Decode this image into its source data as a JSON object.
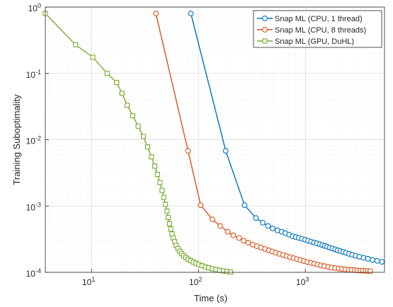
{
  "chart_data": {
    "type": "line",
    "xlabel": "Time (s)",
    "ylabel": "Training Suboptimality",
    "xscale": "log",
    "yscale": "log",
    "xlim": [
      3.7,
      5500
    ],
    "ylim": [
      0.0001,
      1
    ],
    "x_ticks": [
      {
        "value": 10,
        "base": "10",
        "exp": "1"
      },
      {
        "value": 100,
        "base": "10",
        "exp": "2"
      },
      {
        "value": 1000,
        "base": "10",
        "exp": "3"
      }
    ],
    "y_ticks": [
      {
        "value": 0.0001,
        "base": "10",
        "exp": "-4"
      },
      {
        "value": 0.001,
        "base": "10",
        "exp": "-3"
      },
      {
        "value": 0.01,
        "base": "10",
        "exp": "-2"
      },
      {
        "value": 0.1,
        "base": "10",
        "exp": "-1"
      },
      {
        "value": 1,
        "base": "10",
        "exp": "0"
      }
    ],
    "grid": true,
    "legend_position": "top-right",
    "marker_style": {
      "open_markers": true
    },
    "series": [
      {
        "name": "Snap ML (CPU, 1 thread)",
        "color": "#0072BD",
        "marker": "circle",
        "x": [
          85,
          180,
          270,
          345,
          400,
          448,
          495,
          548,
          600,
          650,
          705,
          760,
          815,
          870,
          930,
          995,
          1060,
          1130,
          1205,
          1280,
          1360,
          1440,
          1520,
          1600,
          1690,
          1790,
          1900,
          2010,
          2130,
          2260,
          2400,
          2560,
          2740,
          2950,
          3200,
          3500,
          3850,
          4250,
          4700,
          5200
        ],
        "y": [
          0.8,
          0.0068,
          0.00103,
          0.00066,
          0.00056,
          0.0005,
          0.00046,
          0.00043,
          0.00041,
          0.00039,
          0.00037,
          0.00035,
          0.00034,
          0.00033,
          0.00032,
          0.00031,
          0.0003,
          0.00029,
          0.000282,
          0.000274,
          0.000266,
          0.000258,
          0.00025,
          0.000243,
          0.000236,
          0.000229,
          0.000222,
          0.000215,
          0.000209,
          0.000203,
          0.000197,
          0.00019,
          0.000184,
          0.000178,
          0.000172,
          0.000166,
          0.00016,
          0.000154,
          0.000149,
          0.000144
        ]
      },
      {
        "name": "Snap ML (CPU, 8 threads)",
        "color": "#D95319",
        "marker": "circle",
        "x": [
          40,
          80,
          105,
          135,
          160,
          188,
          212,
          240,
          265,
          292,
          322,
          352,
          385,
          420,
          455,
          490,
          530,
          572,
          618,
          667,
          720,
          775,
          835,
          900,
          970,
          1045,
          1125,
          1210,
          1300,
          1400,
          1510,
          1630,
          1760,
          1900,
          2050,
          2200,
          2360,
          2530,
          2700,
          2880,
          3060,
          3260,
          3450,
          3650,
          3850,
          4050
        ],
        "y": [
          0.8,
          0.0068,
          0.00103,
          0.00063,
          0.0005,
          0.00041,
          0.00036,
          0.00033,
          0.0003,
          0.00028,
          0.000262,
          0.000248,
          0.000236,
          0.000225,
          0.000215,
          0.000206,
          0.000198,
          0.00019,
          0.000183,
          0.000176,
          0.00017,
          0.000164,
          0.000158,
          0.000153,
          0.000148,
          0.000143,
          0.000139,
          0.000135,
          0.000131,
          0.000127,
          0.000124,
          0.000121,
          0.000118,
          0.000116,
          0.000114,
          0.000112,
          0.000111,
          0.00011,
          0.000109,
          0.000108,
          0.000107,
          0.000106,
          0.000106,
          0.000105,
          0.000105,
          0.000104
        ]
      },
      {
        "name": "Snap ML (GPU, DuHL)",
        "color": "#77AC30",
        "marker": "square",
        "x": [
          3.7,
          7.1,
          10.3,
          14,
          17.2,
          19.3,
          21.6,
          24.3,
          27.3,
          30.6,
          33.5,
          36.4,
          39.1,
          41.4,
          43.7,
          45.7,
          47.4,
          49.2,
          50.8,
          52.2,
          53.7,
          55.1,
          56.6,
          58.2,
          60,
          62,
          64.4,
          67,
          69.8,
          72.9,
          76.4,
          80.3,
          84.6,
          89.5,
          95,
          101,
          108,
          116,
          125,
          135,
          146,
          158,
          171,
          185,
          200
        ],
        "y": [
          0.8,
          0.27,
          0.175,
          0.1,
          0.073,
          0.05,
          0.033,
          0.023,
          0.016,
          0.0112,
          0.0078,
          0.0055,
          0.004,
          0.003,
          0.00225,
          0.00172,
          0.00135,
          0.00106,
          0.00084,
          0.00067,
          0.00054,
          0.00045,
          0.00038,
          0.00033,
          0.00029,
          0.000255,
          0.000228,
          0.000207,
          0.000191,
          0.000178,
          0.000167,
          0.000158,
          0.00015,
          0.000143,
          0.000137,
          0.000131,
          0.000126,
          0.000121,
          0.000117,
          0.000113,
          0.00011,
          0.000107,
          0.000105,
          0.000103,
          0.000101
        ]
      }
    ]
  }
}
